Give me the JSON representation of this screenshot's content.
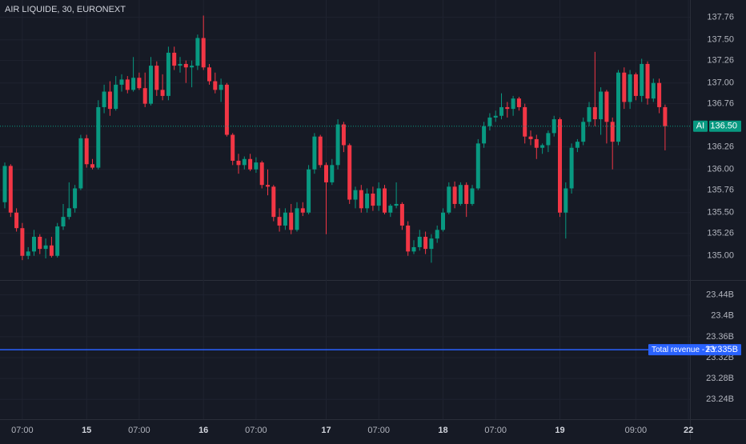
{
  "chart_data": [
    {
      "type": "candlestick",
      "title": "AIR LIQUIDE, 30, EURONEXT",
      "symbol_short": "AI",
      "up_color": "#089981",
      "down_color": "#f23645",
      "grid": true,
      "last_price": {
        "value": 136.5,
        "label": "136.50"
      },
      "ylim": [
        134.72,
        137.96
      ],
      "yticks": [
        137.76,
        {
          "value": 137.5,
          "label": "137.50"
        },
        137.26,
        {
          "value": 137,
          "label": "137.00"
        },
        136.76,
        136.26,
        {
          "value": 136,
          "label": "136.00"
        },
        135.76,
        {
          "value": 135.5,
          "label": "135.50"
        },
        135.26,
        {
          "value": 135,
          "label": "135.00"
        }
      ],
      "categories": [
        null,
        null,
        null,
        "07:00",
        null,
        null,
        null,
        null,
        null,
        null,
        null,
        null,
        null,
        null,
        "15",
        null,
        null,
        null,
        null,
        null,
        null,
        null,
        null,
        "07:00",
        null,
        null,
        null,
        null,
        null,
        null,
        null,
        null,
        null,
        null,
        "16",
        null,
        null,
        null,
        null,
        null,
        null,
        null,
        null,
        "07:00",
        null,
        null,
        null,
        null,
        null,
        null,
        null,
        null,
        null,
        null,
        null,
        "17",
        null,
        null,
        null,
        null,
        null,
        null,
        null,
        null,
        "07:00",
        null,
        null,
        null,
        null,
        null,
        null,
        null,
        null,
        null,
        null,
        "18",
        null,
        null,
        null,
        null,
        null,
        null,
        null,
        null,
        "07:00",
        null,
        null,
        null,
        null,
        null,
        null,
        null,
        null,
        null,
        null,
        "19",
        null,
        null,
        null,
        null,
        null,
        null,
        null,
        null,
        null,
        null,
        null,
        null,
        "09:00",
        null,
        null,
        null,
        null,
        null,
        null,
        null,
        null,
        "22"
      ],
      "ohlc": [
        [
          135.62,
          136.08,
          135.55,
          136.04
        ],
        [
          136.04,
          136.06,
          135.45,
          135.5
        ],
        [
          135.5,
          135.55,
          135.28,
          135.32
        ],
        [
          135.32,
          135.38,
          134.95,
          135
        ],
        [
          135,
          135.1,
          134.96,
          135.05
        ],
        [
          135.05,
          135.3,
          135,
          135.22
        ],
        [
          135.22,
          135.25,
          135.02,
          135.08
        ],
        [
          135.08,
          135.2,
          134.97,
          135.12
        ],
        [
          135.12,
          135.22,
          134.98,
          135
        ],
        [
          135,
          135.38,
          134.98,
          135.34
        ],
        [
          135.34,
          135.6,
          135.3,
          135.45
        ],
        [
          135.45,
          135.85,
          135.42,
          135.55
        ],
        [
          135.55,
          135.82,
          135.5,
          135.78
        ],
        [
          135.78,
          136.4,
          135.76,
          136.36
        ],
        [
          136.36,
          136.4,
          136.02,
          136.06
        ],
        [
          136.06,
          136.12,
          136,
          136.02
        ],
        [
          136.02,
          136.8,
          136,
          136.72
        ],
        [
          136.72,
          136.98,
          136.65,
          136.9
        ],
        [
          136.9,
          137.02,
          136.62,
          136.7
        ],
        [
          136.7,
          137.08,
          136.68,
          136.98
        ],
        [
          136.98,
          137.1,
          136.9,
          137.04
        ],
        [
          137.04,
          137.08,
          136.88,
          136.92
        ],
        [
          136.92,
          137.3,
          136.9,
          137.06
        ],
        [
          137.06,
          137.12,
          136.92,
          136.94
        ],
        [
          136.94,
          137.12,
          136.72,
          136.76
        ],
        [
          136.76,
          137.3,
          136.74,
          137.2
        ],
        [
          137.2,
          137.25,
          136.85,
          136.92
        ],
        [
          136.92,
          137.1,
          136.8,
          136.85
        ],
        [
          136.85,
          137.42,
          136.8,
          137.35
        ],
        [
          137.35,
          137.42,
          137.15,
          137.2
        ],
        [
          137.2,
          137.3,
          137.12,
          137.22
        ],
        [
          137.22,
          137.26,
          137,
          137.18
        ],
        [
          137.18,
          137.26,
          136.95,
          137.2
        ],
        [
          137.2,
          137.56,
          137.15,
          137.52
        ],
        [
          137.52,
          137.78,
          137.15,
          137.18
        ],
        [
          137.18,
          137.22,
          136.98,
          137.02
        ],
        [
          137.02,
          137.12,
          136.88,
          136.92
        ],
        [
          136.92,
          137.05,
          136.78,
          136.98
        ],
        [
          136.98,
          137,
          136.38,
          136.4
        ],
        [
          136.4,
          136.42,
          136.05,
          136.1
        ],
        [
          136.1,
          136.18,
          135.95,
          136.05
        ],
        [
          136.05,
          136.15,
          136,
          136.12
        ],
        [
          136.12,
          136.18,
          135.98,
          136
        ],
        [
          136,
          136.14,
          135.96,
          136.08
        ],
        [
          136.08,
          136.1,
          135.78,
          135.82
        ],
        [
          135.82,
          136,
          135.7,
          135.8
        ],
        [
          135.8,
          135.82,
          135.4,
          135.45
        ],
        [
          135.45,
          135.55,
          135.28,
          135.35
        ],
        [
          135.35,
          135.55,
          135.3,
          135.5
        ],
        [
          135.5,
          135.6,
          135.25,
          135.3
        ],
        [
          135.3,
          135.62,
          135.28,
          135.55
        ],
        [
          135.55,
          135.62,
          135.46,
          135.5
        ],
        [
          135.5,
          136.05,
          135.48,
          136
        ],
        [
          136,
          136.42,
          135.95,
          136.38
        ],
        [
          136.38,
          136.4,
          136.02,
          136.05
        ],
        [
          136.05,
          136.08,
          135.25,
          135.85
        ],
        [
          135.85,
          136.12,
          135.82,
          136.05
        ],
        [
          136.05,
          136.58,
          136,
          136.52
        ],
        [
          136.52,
          136.55,
          136.2,
          136.28
        ],
        [
          136.28,
          136.3,
          135.6,
          135.65
        ],
        [
          135.65,
          135.8,
          135.55,
          135.76
        ],
        [
          135.76,
          135.82,
          135.5,
          135.55
        ],
        [
          135.55,
          135.78,
          135.5,
          135.72
        ],
        [
          135.72,
          135.8,
          135.52,
          135.58
        ],
        [
          135.58,
          135.85,
          135.52,
          135.78
        ],
        [
          135.78,
          135.82,
          135.48,
          135.5
        ],
        [
          135.5,
          135.6,
          135.45,
          135.58
        ],
        [
          135.58,
          135.85,
          135.55,
          135.6
        ],
        [
          135.6,
          135.62,
          135.3,
          135.35
        ],
        [
          135.35,
          135.4,
          135,
          135.05
        ],
        [
          135.05,
          135.18,
          135.02,
          135.1
        ],
        [
          135.1,
          135.3,
          135.06,
          135.22
        ],
        [
          135.22,
          135.28,
          135.02,
          135.08
        ],
        [
          135.08,
          135.25,
          134.92,
          135.2
        ],
        [
          135.2,
          135.35,
          135.15,
          135.3
        ],
        [
          135.3,
          135.55,
          135.28,
          135.5
        ],
        [
          135.5,
          135.85,
          135.48,
          135.8
        ],
        [
          135.8,
          135.86,
          135.55,
          135.6
        ],
        [
          135.6,
          135.85,
          135.58,
          135.82
        ],
        [
          135.82,
          135.85,
          135.45,
          135.6
        ],
        [
          135.6,
          135.82,
          135.58,
          135.78
        ],
        [
          135.78,
          136.35,
          135.76,
          136.3
        ],
        [
          136.3,
          136.55,
          136.25,
          136.5
        ],
        [
          136.5,
          136.65,
          136.45,
          136.6
        ],
        [
          136.6,
          136.68,
          136.55,
          136.62
        ],
        [
          136.62,
          136.88,
          136.58,
          136.72
        ],
        [
          136.72,
          136.78,
          136.6,
          136.7
        ],
        [
          136.7,
          136.85,
          136.62,
          136.82
        ],
        [
          136.82,
          136.84,
          136.68,
          136.72
        ],
        [
          136.72,
          136.76,
          136.3,
          136.38
        ],
        [
          136.38,
          136.45,
          136.28,
          136.35
        ],
        [
          136.35,
          136.4,
          136.12,
          136.25
        ],
        [
          136.25,
          136.3,
          136.18,
          136.28
        ],
        [
          136.28,
          136.45,
          136.2,
          136.42
        ],
        [
          136.42,
          136.62,
          136.38,
          136.58
        ],
        [
          136.58,
          136.6,
          135.45,
          135.5
        ],
        [
          135.5,
          135.85,
          135.2,
          135.78
        ],
        [
          135.78,
          136.3,
          135.72,
          136.25
        ],
        [
          136.25,
          136.35,
          136.2,
          136.32
        ],
        [
          136.32,
          136.6,
          136.28,
          136.55
        ],
        [
          136.55,
          136.78,
          136.5,
          136.72
        ],
        [
          136.72,
          137.36,
          136.5,
          136.58
        ],
        [
          136.58,
          136.95,
          136.4,
          136.9
        ],
        [
          136.9,
          136.92,
          136.3,
          136.55
        ],
        [
          136.55,
          136.6,
          136,
          136.32
        ],
        [
          136.32,
          137.15,
          136.28,
          137.12
        ],
        [
          137.12,
          137.18,
          136.7,
          136.78
        ],
        [
          136.78,
          137.15,
          136.7,
          137.1
        ],
        [
          137.1,
          137.12,
          136.8,
          136.85
        ],
        [
          136.85,
          137.28,
          136.78,
          137.22
        ],
        [
          137.22,
          137.25,
          136.75,
          136.82
        ],
        [
          136.82,
          137.05,
          136.78,
          137
        ],
        [
          137,
          137.05,
          136.65,
          136.72
        ],
        [
          136.72,
          136.75,
          136.22,
          136.5
        ],
        null,
        null,
        null,
        null
      ]
    },
    {
      "type": "hline",
      "ylim": [
        23.202,
        23.467
      ],
      "yticks": [
        {
          "value": 23.44,
          "label": "23.44B"
        },
        {
          "value": 23.4,
          "label": "23.4B"
        },
        {
          "value": 23.36,
          "label": "23.36B"
        },
        {
          "value": 23.32,
          "label": "23.32B"
        },
        {
          "value": 23.28,
          "label": "23.28B"
        },
        {
          "value": 23.24,
          "label": "23.24B"
        }
      ],
      "series": [
        {
          "name": "Total revenue - FY",
          "color": "#2962ff",
          "values": [
            23.335
          ],
          "value_labels": [
            "23.335B"
          ]
        }
      ]
    }
  ]
}
